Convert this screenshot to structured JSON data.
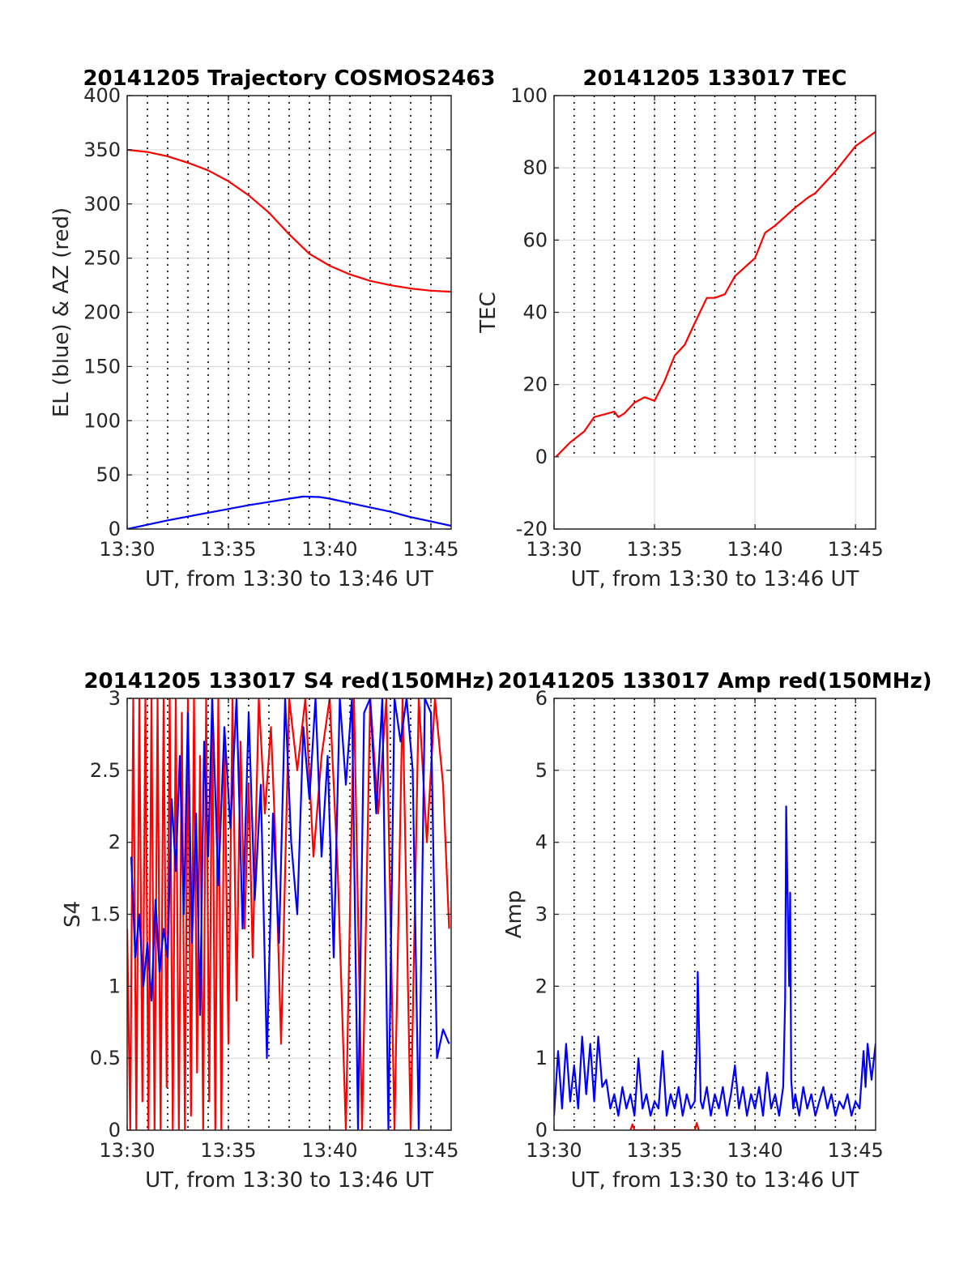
{
  "figure": {
    "background": "#ffffff"
  },
  "chart_data": [
    {
      "id": "trajectory",
      "type": "line",
      "title": "20141205 Trajectory COSMOS2463",
      "xlabel": "UT, from 13:30 to 13:46 UT",
      "ylabel": "EL (blue) & AZ (red)",
      "xlim": [
        0,
        16
      ],
      "ylim": [
        0,
        400
      ],
      "x_tick_labels": [
        "13:30",
        "13:35",
        "13:40",
        "13:45"
      ],
      "y_tick_labels": [
        "0",
        "50",
        "100",
        "150",
        "200",
        "250",
        "300",
        "350",
        "400"
      ],
      "series": [
        {
          "color": "#ff0000",
          "x": [
            0,
            1,
            2,
            3,
            4,
            5,
            6,
            7,
            8,
            9,
            10,
            11,
            12,
            13,
            14,
            15,
            16
          ],
          "y": [
            350,
            348,
            344,
            338,
            331,
            321,
            308,
            292,
            272,
            254,
            243,
            235,
            229,
            225,
            222,
            220,
            219
          ]
        },
        {
          "color": "#0000ff",
          "x": [
            0,
            2,
            4,
            6,
            7,
            8,
            8.7,
            9.5,
            10,
            11,
            12,
            13,
            14,
            15,
            16
          ],
          "y": [
            0,
            8,
            15,
            22,
            25,
            28,
            30,
            29.5,
            28,
            24,
            20,
            16,
            11,
            7,
            3
          ]
        }
      ]
    },
    {
      "id": "tec",
      "type": "line",
      "title": "20141205 133017 TEC",
      "xlabel": "UT, from 13:30 to 13:46 UT",
      "ylabel": "TEC",
      "xlim": [
        0,
        16
      ],
      "ylim": [
        -20,
        100
      ],
      "x_tick_labels": [
        "13:30",
        "13:35",
        "13:40",
        "13:45"
      ],
      "y_tick_labels": [
        "-20",
        "0",
        "20",
        "40",
        "60",
        "80",
        "100"
      ],
      "series": [
        {
          "color": "#ff0000",
          "x": [
            0.1,
            0.8,
            1.5,
            2,
            3,
            3.2,
            3.5,
            4,
            4.5,
            5,
            5.5,
            6,
            6.5,
            7,
            7.6,
            8,
            8.5,
            9,
            9.6,
            10,
            10.5,
            11,
            12,
            12.7,
            13,
            14,
            15,
            16
          ],
          "y": [
            0,
            4,
            7,
            11,
            12.5,
            11,
            12,
            15,
            16.5,
            15.5,
            21,
            28,
            31,
            37,
            44,
            44,
            45,
            50,
            53,
            55,
            62,
            64,
            69,
            72,
            73,
            79,
            86,
            90
          ]
        }
      ]
    },
    {
      "id": "s4",
      "type": "line",
      "title": "20141205 133017 S4 red(150MHz)",
      "xlabel": "UT, from 13:30 to 13:46 UT",
      "ylabel": "S4",
      "xlim": [
        0,
        16
      ],
      "ylim": [
        0,
        3
      ],
      "x_tick_labels": [
        "13:30",
        "13:35",
        "13:40",
        "13:45"
      ],
      "y_tick_labels": [
        "0",
        "0.5",
        "1",
        "1.5",
        "2",
        "2.5",
        "3"
      ],
      "series": [
        {
          "color": "#ff0000",
          "x": [
            0,
            0.15,
            0.3,
            0.45,
            0.6,
            0.75,
            0.9,
            1.05,
            1.2,
            1.35,
            1.5,
            1.65,
            1.8,
            1.95,
            2.1,
            2.25,
            2.4,
            2.55,
            2.7,
            2.85,
            3,
            3.15,
            3.3,
            3.45,
            3.6,
            3.75,
            3.9,
            4.05,
            4.2,
            4.35,
            4.5,
            4.65,
            4.8,
            5,
            5.2,
            5.4,
            5.6,
            5.8,
            6,
            6.2,
            6.5,
            6.8,
            7.1,
            7.3,
            7.6,
            8,
            8.4,
            8.8,
            9.2,
            9.6,
            10,
            10.4,
            10.8,
            11.2,
            11.6,
            12,
            12.4,
            12.8,
            13.2,
            13.6,
            14,
            14.4,
            14.8,
            15.2,
            15.6,
            15.9
          ],
          "y": [
            1.4,
            0,
            3,
            0,
            3,
            0.2,
            3,
            0,
            3,
            0,
            3,
            0,
            3,
            0.3,
            3,
            0,
            3,
            0,
            2.9,
            0,
            3,
            0.1,
            3,
            0.4,
            2.6,
            0,
            3,
            0.2,
            3,
            0,
            3,
            0,
            2.8,
            0.6,
            3,
            0.9,
            2.7,
            1.4,
            2.4,
            1.2,
            3,
            2.2,
            2.8,
            2.1,
            0.6,
            3,
            2.5,
            3,
            1.9,
            2.6,
            3,
            1.8,
            0,
            3,
            0,
            3,
            2.2,
            3,
            0,
            3,
            0,
            3,
            2,
            3,
            2.4,
            1.4
          ]
        },
        {
          "color": "#0000ff",
          "x": [
            0.2,
            0.4,
            0.6,
            0.8,
            1,
            1.2,
            1.4,
            1.6,
            1.8,
            2,
            2.2,
            2.4,
            2.6,
            2.8,
            3,
            3.2,
            3.4,
            3.6,
            3.8,
            4,
            4.2,
            4.5,
            4.8,
            5.1,
            5.4,
            5.7,
            6,
            6.3,
            6.6,
            6.9,
            7.2,
            7.5,
            7.8,
            8.1,
            8.4,
            8.7,
            9,
            9.3,
            9.6,
            9.9,
            10.2,
            10.5,
            10.8,
            11.1,
            11.4,
            11.7,
            12,
            12.3,
            12.6,
            12.9,
            13.2,
            13.5,
            13.8,
            14.1,
            14.4,
            14.7,
            15,
            15.3,
            15.6,
            15.9
          ],
          "y": [
            1.9,
            1.2,
            1.5,
            1.0,
            1.3,
            0.9,
            1.6,
            1.1,
            1.4,
            1.2,
            2.3,
            1.8,
            2.6,
            1.5,
            2.9,
            1.3,
            2.2,
            0.8,
            2.7,
            1.9,
            3,
            1.7,
            2.8,
            2.1,
            3,
            1.4,
            2.9,
            1.6,
            2.4,
            0.5,
            2.2,
            1.3,
            3,
            2.0,
            1.5,
            2.8,
            2.3,
            3,
            1.9,
            2.6,
            1.2,
            3,
            2.4,
            3,
            0,
            2.9,
            3,
            2.2,
            3,
            0,
            3,
            2.7,
            3,
            2.5,
            0,
            3,
            2.9,
            0.5,
            0.7,
            0.6
          ]
        }
      ]
    },
    {
      "id": "amp",
      "type": "line",
      "title": "20141205 133017 Amp red(150MHz)",
      "xlabel": "UT, from 13:30 to 13:46 UT",
      "ylabel": "Amp",
      "xlim": [
        0,
        16
      ],
      "ylim": [
        0,
        6
      ],
      "x_tick_labels": [
        "13:30",
        "13:35",
        "13:40",
        "13:45"
      ],
      "y_tick_labels": [
        "0",
        "1",
        "2",
        "3",
        "4",
        "5",
        "6"
      ],
      "series": [
        {
          "color": "#ff0000",
          "x": [
            3.8,
            3.9,
            4.0,
            7.0,
            7.1,
            7.2
          ],
          "y": [
            0.0,
            0.08,
            0.0,
            0.0,
            0.1,
            0.0
          ]
        },
        {
          "color": "#0000ff",
          "x": [
            0,
            0.2,
            0.4,
            0.6,
            0.8,
            1,
            1.2,
            1.4,
            1.6,
            1.8,
            2,
            2.2,
            2.4,
            2.6,
            2.8,
            3,
            3.2,
            3.4,
            3.6,
            3.8,
            4,
            4.2,
            4.4,
            4.6,
            4.8,
            5,
            5.2,
            5.4,
            5.6,
            5.8,
            6,
            6.2,
            6.4,
            6.6,
            6.8,
            7,
            7.1,
            7.15,
            7.2,
            7.3,
            7.4,
            7.6,
            7.8,
            8,
            8.2,
            8.4,
            8.6,
            8.8,
            9,
            9.2,
            9.4,
            9.6,
            9.8,
            10,
            10.2,
            10.4,
            10.6,
            10.8,
            11,
            11.2,
            11.4,
            11.5,
            11.55,
            11.6,
            11.7,
            11.75,
            11.8,
            11.9,
            12,
            12.2,
            12.4,
            12.6,
            12.8,
            13,
            13.2,
            13.4,
            13.6,
            13.8,
            14,
            14.2,
            14.4,
            14.6,
            14.8,
            15,
            15.2,
            15.4,
            15.5,
            15.6,
            15.8,
            16
          ],
          "y": [
            0.2,
            1.1,
            0.3,
            1.2,
            0.4,
            0.9,
            0.3,
            1.3,
            0.5,
            1.2,
            0.4,
            1.3,
            0.6,
            0.7,
            0.3,
            0.5,
            0.2,
            0.6,
            0.3,
            0.5,
            0.2,
            1.0,
            0.3,
            0.5,
            0.2,
            0.4,
            0.3,
            1.1,
            0.2,
            0.5,
            0.3,
            0.6,
            0.2,
            0.5,
            0.3,
            0.4,
            1.2,
            2.2,
            1.6,
            0.4,
            0.3,
            0.6,
            0.2,
            0.5,
            0.3,
            0.6,
            0.2,
            0.5,
            0.9,
            0.3,
            0.6,
            0.2,
            0.5,
            0.3,
            0.6,
            0.2,
            0.8,
            0.3,
            0.5,
            0.2,
            0.6,
            1.8,
            4.5,
            3.6,
            2.0,
            3.3,
            0.7,
            0.3,
            0.5,
            0.2,
            0.6,
            0.3,
            0.5,
            0.2,
            0.4,
            0.6,
            0.3,
            0.5,
            0.2,
            0.4,
            0.3,
            0.5,
            0.2,
            0.4,
            0.3,
            1.1,
            0.6,
            1.2,
            0.7,
            1.2
          ]
        }
      ]
    }
  ]
}
